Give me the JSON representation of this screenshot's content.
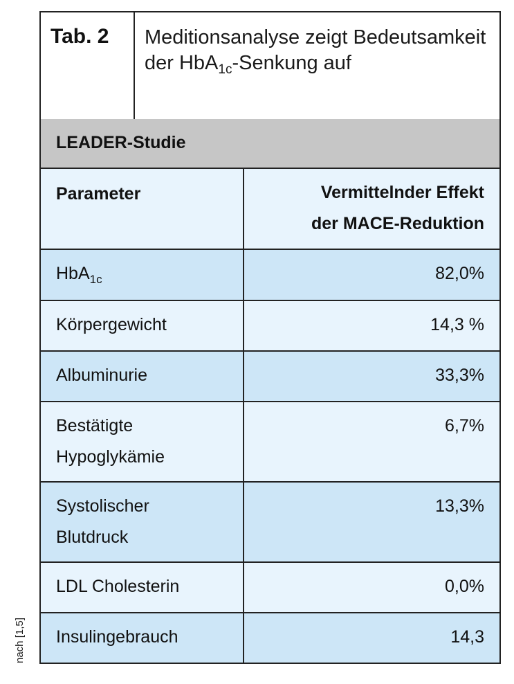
{
  "table": {
    "tab_label": "Tab. 2",
    "title_part1": "Meditionsanalyse zeigt Bedeutsamkeit der HbA",
    "title_sub": "1c",
    "title_part2": "-Senkung auf",
    "study": "LEADER-Studie",
    "col_param": "Parameter",
    "col_effect_line1": "Vermittelnder Effekt",
    "col_effect_line2": "der MACE-Reduktion",
    "rows": [
      {
        "param": "HbA",
        "param_sub": "1c",
        "value": "82,0%"
      },
      {
        "param": "Körpergewicht",
        "value": "14,3 %"
      },
      {
        "param": "Albuminurie",
        "value": "33,3%"
      },
      {
        "param_line1": "Bestätigte",
        "param_line2": "Hypoglykämie",
        "value": "6,7%"
      },
      {
        "param_line1": "Systolischer",
        "param_line2": "Blutdruck",
        "value": "13,3%"
      },
      {
        "param": "LDL Cholesterin",
        "value": "0,0%"
      },
      {
        "param": "Insulingebrauch",
        "value": "14,3"
      }
    ]
  },
  "source": "nach [1,5]",
  "colors": {
    "header_gray": "#c6c6c6",
    "row_dark": "#cde6f7",
    "row_light": "#e8f4fd",
    "border": "#222222"
  }
}
